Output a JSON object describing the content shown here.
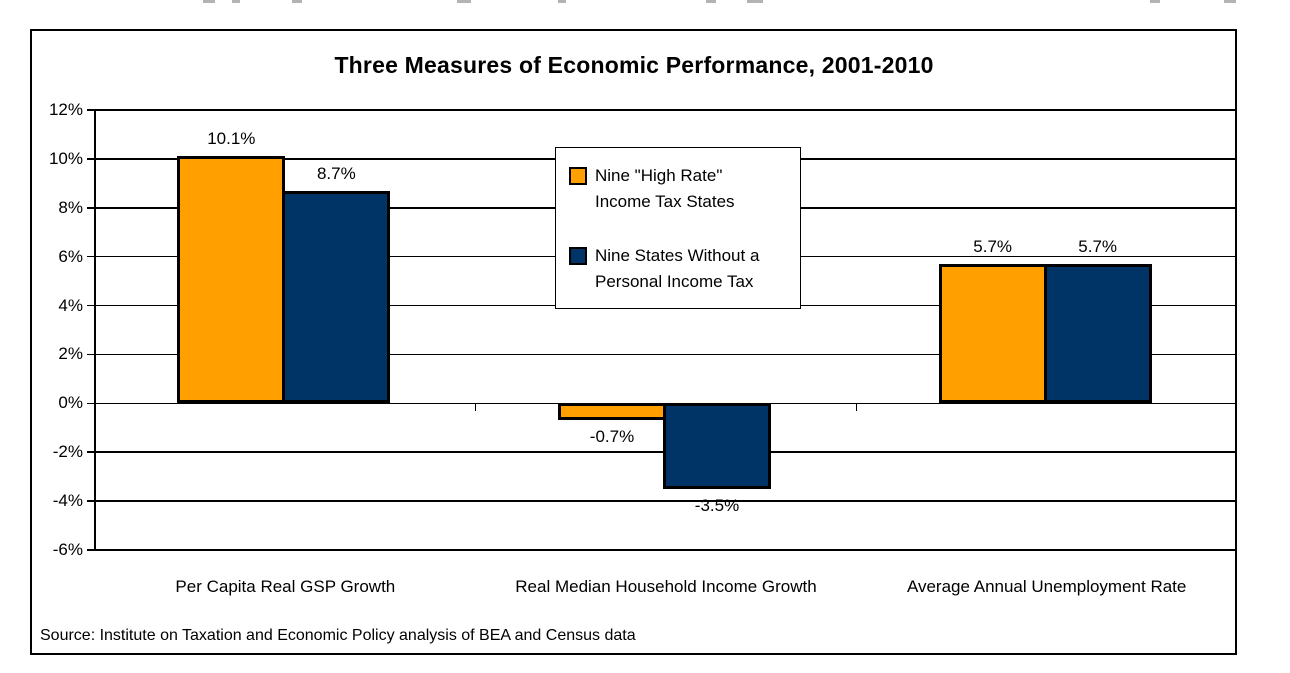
{
  "page": {
    "title": "Three Measures of Economic Performance, 2001-2010",
    "source": "Source: Institute on Taxation and Economic Policy analysis of BEA and Census data"
  },
  "colors": {
    "high_rate_orange": "#FF9F00",
    "no_tax_navy": "#003366",
    "bar_border": "#000000",
    "grid": "#000000"
  },
  "chart_data": {
    "type": "bar",
    "title": "Three Measures of Economic Performance, 2001-2010",
    "categories": [
      "Per Capita Real GSP Growth",
      "Real Median Household Income Growth",
      "Average Annual Unemployment Rate"
    ],
    "series": [
      {
        "name": "Nine \"High Rate\"\nIncome Tax States",
        "color": "#FF9F00",
        "values": [
          10.1,
          -0.7,
          5.7
        ]
      },
      {
        "name": "Nine States Without a\nPersonal Income Tax",
        "color": "#003366",
        "values": [
          8.7,
          -3.5,
          5.7
        ]
      }
    ],
    "data_labels": [
      [
        "10.1%",
        "-0.7%",
        "5.7%"
      ],
      [
        "8.7%",
        "-3.5%",
        "5.7%"
      ]
    ],
    "ylim": [
      -6,
      12
    ],
    "ytick_step": 2,
    "ytick_labels": [
      "12%",
      "10%",
      "8%",
      "6%",
      "4%",
      "2%",
      "0%",
      "-2%",
      "-4%",
      "-6%"
    ],
    "grid": true,
    "legend_position": "inside-top-center",
    "source": "Source: Institute on Taxation and Economic Policy analysis of BEA and Census data"
  }
}
